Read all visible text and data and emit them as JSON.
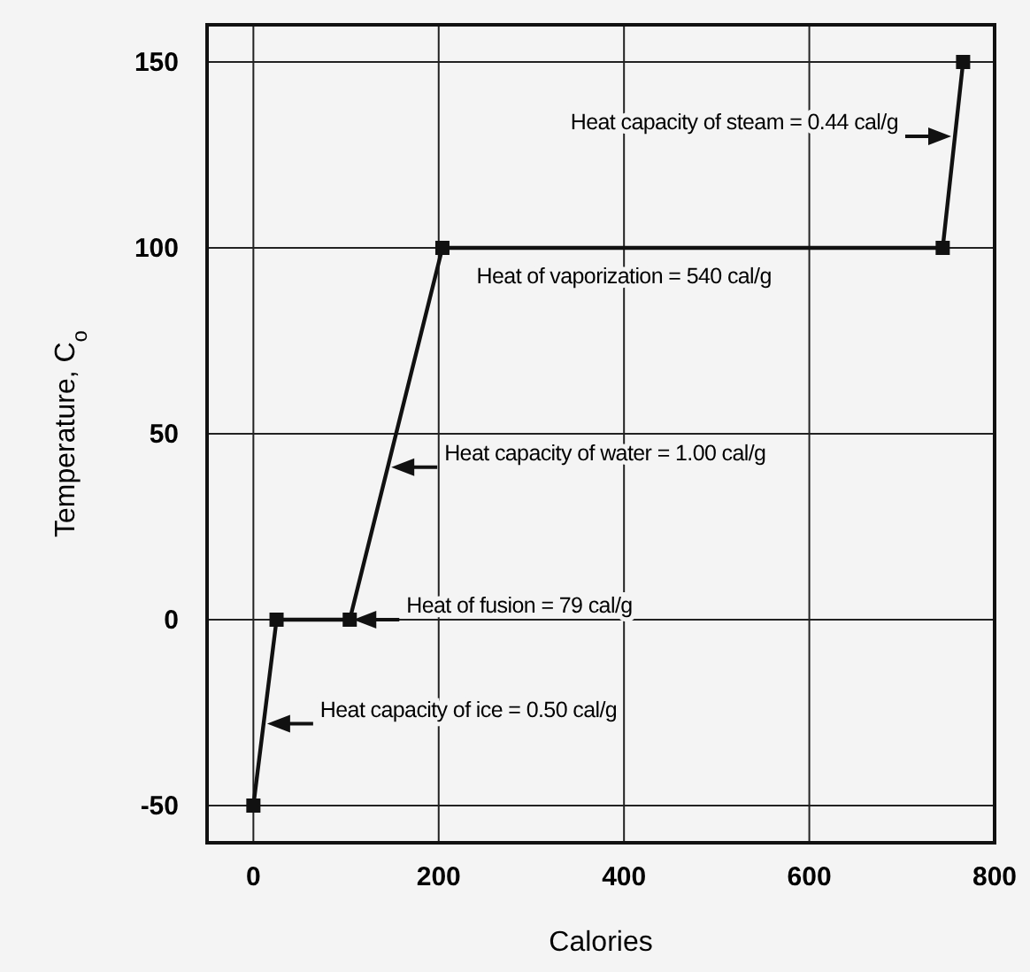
{
  "chart_data": {
    "type": "line",
    "xlabel": "Calories",
    "ylabel": "Temperature, C$_{o}$",
    "x": [
      0,
      25,
      104,
      204,
      744,
      766
    ],
    "series": [
      {
        "color": "#111111",
        "values": [
          -50,
          0,
          0,
          100,
          100,
          150
        ]
      }
    ],
    "xlim": [
      -50,
      800
    ],
    "xticks": [
      0,
      200,
      400,
      600,
      800
    ],
    "ylim": [
      -60,
      160
    ],
    "yticks": [
      -50,
      0,
      50,
      100,
      150
    ],
    "grid": true,
    "marker": "square",
    "line_style": "solid",
    "annotations": [
      {
        "text": "Heat capacity of steam = 0.44 cal/g",
        "x": 757,
        "y": 130
      },
      {
        "text": "Heat of vaporization = 540 cal/g",
        "x": 400,
        "y": 100
      },
      {
        "text": "Heat capacity of water = 1.00 cal/g",
        "x": 145,
        "y": 41
      },
      {
        "text": "Heat of fusion = 79 cal/g",
        "x": 104,
        "y": 0
      },
      {
        "text": "Heat capacity of ice = 0.50 cal/g",
        "x": 11,
        "y": -28
      }
    ]
  }
}
